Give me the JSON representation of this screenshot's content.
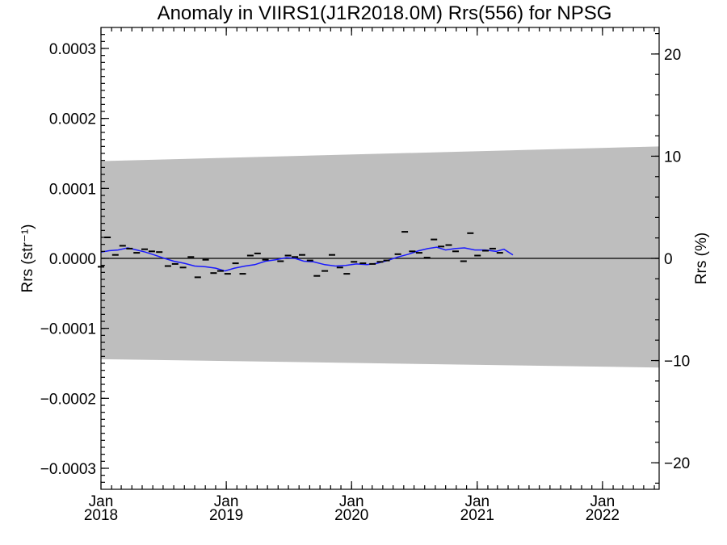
{
  "chart_data": {
    "type": "line",
    "title": "Anomaly in VIIRS1(J1R2018.0M) Rrs(556) for NPSG",
    "ylabel_left": "Rrs (str⁻¹)",
    "ylabel_right": "Rrs (%)",
    "xlim": [
      "2018-01-01",
      "2022-06-15"
    ],
    "ylim_left": [
      -0.00033,
      0.00033
    ],
    "ylim_right": [
      -22.6,
      22.6
    ],
    "y_ticks_left": [
      -0.0003,
      -0.0002,
      -0.0001,
      0.0,
      0.0001,
      0.0002,
      0.0003
    ],
    "y_tick_labels_left": [
      "−0.0003",
      "−0.0002",
      "−0.0001",
      "0.0000",
      "0.0001",
      "0.0002",
      "0.0003"
    ],
    "y_ticks_right": [
      -20,
      -10,
      0,
      10,
      20
    ],
    "y_tick_labels_right": [
      "−20",
      "−10",
      "0",
      "10",
      "20"
    ],
    "x_ticks": [
      {
        "date": "2018-01-01",
        "month": "Jan",
        "year": "2018"
      },
      {
        "date": "2019-01-01",
        "month": "Jan",
        "year": "2019"
      },
      {
        "date": "2020-01-01",
        "month": "Jan",
        "year": "2020"
      },
      {
        "date": "2021-01-01",
        "month": "Jan",
        "year": "2021"
      },
      {
        "date": "2022-01-01",
        "month": "Jan",
        "year": "2022"
      }
    ],
    "band": {
      "x": [
        "2018-01-01",
        "2022-06-15"
      ],
      "upper": [
        0.000139,
        0.00016
      ],
      "lower": [
        -0.000144,
        -0.000156
      ],
      "color": "#bebebe"
    },
    "zero_line": 0.0,
    "series": [
      {
        "kind": "marker",
        "color": "#000000",
        "points": [
          [
            "2018-01-01",
            -1.2e-05
          ],
          [
            "2018-01-20",
            3e-05
          ],
          [
            "2018-02-12",
            5e-06
          ],
          [
            "2018-03-05",
            1.8e-05
          ],
          [
            "2018-03-25",
            1.4e-05
          ],
          [
            "2018-04-15",
            8e-06
          ],
          [
            "2018-05-08",
            1.3e-05
          ],
          [
            "2018-05-29",
            1e-05
          ],
          [
            "2018-06-20",
            9e-06
          ],
          [
            "2018-07-15",
            -1.1e-05
          ],
          [
            "2018-08-05",
            -8e-06
          ],
          [
            "2018-08-28",
            -1.3e-05
          ],
          [
            "2018-09-20",
            2e-06
          ],
          [
            "2018-10-10",
            -2.7e-05
          ],
          [
            "2018-11-02",
            -2e-06
          ],
          [
            "2018-11-25",
            -2.1e-05
          ],
          [
            "2018-12-15",
            -1.8e-05
          ],
          [
            "2019-01-05",
            -2.2e-05
          ],
          [
            "2019-01-28",
            -7e-06
          ],
          [
            "2019-02-18",
            -2.2e-05
          ],
          [
            "2019-03-12",
            4e-06
          ],
          [
            "2019-04-02",
            7e-06
          ],
          [
            "2019-04-25",
            -2e-06
          ],
          [
            "2019-06-08",
            -4e-06
          ],
          [
            "2019-06-30",
            4e-06
          ],
          [
            "2019-07-20",
            2e-06
          ],
          [
            "2019-08-10",
            5e-06
          ],
          [
            "2019-09-02",
            -3e-06
          ],
          [
            "2019-09-22",
            -2.5e-05
          ],
          [
            "2019-10-15",
            -1.8e-05
          ],
          [
            "2019-11-05",
            5e-06
          ],
          [
            "2019-11-28",
            -1.3e-05
          ],
          [
            "2019-12-18",
            -2.2e-05
          ],
          [
            "2020-01-08",
            -5e-06
          ],
          [
            "2020-02-03",
            -7e-06
          ],
          [
            "2020-03-02",
            -8e-06
          ],
          [
            "2020-03-24",
            -5e-06
          ],
          [
            "2020-04-12",
            -3e-06
          ],
          [
            "2020-05-15",
            6e-06
          ],
          [
            "2020-06-04",
            3.8e-05
          ],
          [
            "2020-06-26",
            1e-05
          ],
          [
            "2020-07-16",
            8e-06
          ],
          [
            "2020-08-08",
            1e-06
          ],
          [
            "2020-08-28",
            2.7e-05
          ],
          [
            "2020-09-18",
            1.7e-05
          ],
          [
            "2020-10-10",
            1.9e-05
          ],
          [
            "2020-10-30",
            1e-05
          ],
          [
            "2020-11-22",
            -4e-06
          ],
          [
            "2020-12-12",
            3.6e-05
          ],
          [
            "2021-01-02",
            4e-06
          ],
          [
            "2021-01-25",
            1.1e-05
          ],
          [
            "2021-02-15",
            1.4e-05
          ],
          [
            "2021-03-08",
            8e-06
          ]
        ]
      },
      {
        "kind": "line",
        "color": "#1a1aff",
        "points": [
          [
            "2018-01-01",
            9e-06
          ],
          [
            "2018-01-25",
            1.1e-05
          ],
          [
            "2018-02-20",
            1.2e-05
          ],
          [
            "2018-03-20",
            1.5e-05
          ],
          [
            "2018-04-15",
            1.2e-05
          ],
          [
            "2018-05-10",
            9e-06
          ],
          [
            "2018-06-05",
            5e-06
          ],
          [
            "2018-07-05",
            0.0
          ],
          [
            "2018-08-01",
            -4e-06
          ],
          [
            "2018-09-01",
            -7e-06
          ],
          [
            "2018-10-01",
            -1.1e-05
          ],
          [
            "2018-11-01",
            -1.2e-05
          ],
          [
            "2018-12-01",
            -1.4e-05
          ],
          [
            "2018-12-28",
            -1.8e-05
          ],
          [
            "2019-01-25",
            -1.4e-05
          ],
          [
            "2019-02-25",
            -1.1e-05
          ],
          [
            "2019-03-25",
            -9e-06
          ],
          [
            "2019-04-25",
            -4e-06
          ],
          [
            "2019-05-25",
            -2e-06
          ],
          [
            "2019-06-25",
            1e-06
          ],
          [
            "2019-07-20",
            0.0
          ],
          [
            "2019-08-15",
            -4e-06
          ],
          [
            "2019-09-12",
            -5e-06
          ],
          [
            "2019-10-15",
            -9e-06
          ],
          [
            "2019-11-15",
            -1.1e-05
          ],
          [
            "2019-12-15",
            -1e-05
          ],
          [
            "2020-01-15",
            -8e-06
          ],
          [
            "2020-02-15",
            -9e-06
          ],
          [
            "2020-03-15",
            -7e-06
          ],
          [
            "2020-04-15",
            -3e-06
          ],
          [
            "2020-05-15",
            2e-06
          ],
          [
            "2020-06-15",
            6e-06
          ],
          [
            "2020-07-15",
            1.1e-05
          ],
          [
            "2020-08-10",
            1.4e-05
          ],
          [
            "2020-09-05",
            1.6e-05
          ],
          [
            "2020-10-01",
            1.2e-05
          ],
          [
            "2020-10-28",
            1.4e-05
          ],
          [
            "2020-11-25",
            1.5e-05
          ],
          [
            "2020-12-25",
            1.2e-05
          ],
          [
            "2021-01-25",
            1.2e-05
          ],
          [
            "2021-02-25",
            1e-05
          ],
          [
            "2021-03-20",
            1.3e-05
          ],
          [
            "2021-04-15",
            5e-06
          ]
        ]
      }
    ]
  }
}
